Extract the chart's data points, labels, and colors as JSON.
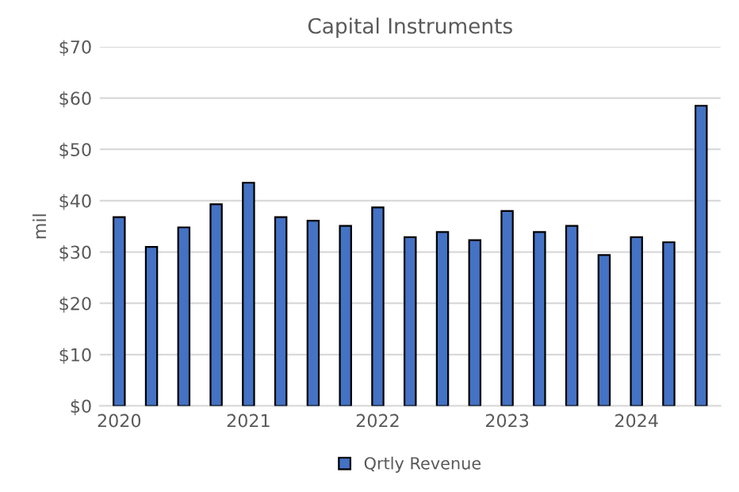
{
  "chart_data": {
    "type": "bar",
    "title": "Capital Instruments",
    "ylabel": "mil",
    "categories": [
      "2020",
      null,
      null,
      null,
      "2021",
      null,
      null,
      null,
      "2022",
      null,
      null,
      null,
      "2023",
      null,
      null,
      null,
      "2024",
      null,
      null
    ],
    "series": [
      {
        "name": "Qrtly Revenue",
        "color": "#4472c4",
        "values": [
          36.8,
          31.0,
          34.8,
          39.3,
          43.5,
          36.8,
          36.1,
          35.1,
          38.7,
          32.9,
          33.9,
          32.3,
          38.0,
          33.9,
          35.1,
          29.4,
          32.9,
          31.9,
          58.5
        ]
      }
    ],
    "ylim": [
      0,
      70
    ],
    "yticks": [
      {
        "value": 0,
        "label": "$0"
      },
      {
        "value": 10,
        "label": "$10"
      },
      {
        "value": 20,
        "label": "$20"
      },
      {
        "value": 30,
        "label": "$30"
      },
      {
        "value": 40,
        "label": "$40"
      },
      {
        "value": 50,
        "label": "$50"
      },
      {
        "value": 60,
        "label": "$60"
      },
      {
        "value": 70,
        "label": "$70"
      }
    ],
    "grid": "y",
    "legend": "bottom"
  }
}
